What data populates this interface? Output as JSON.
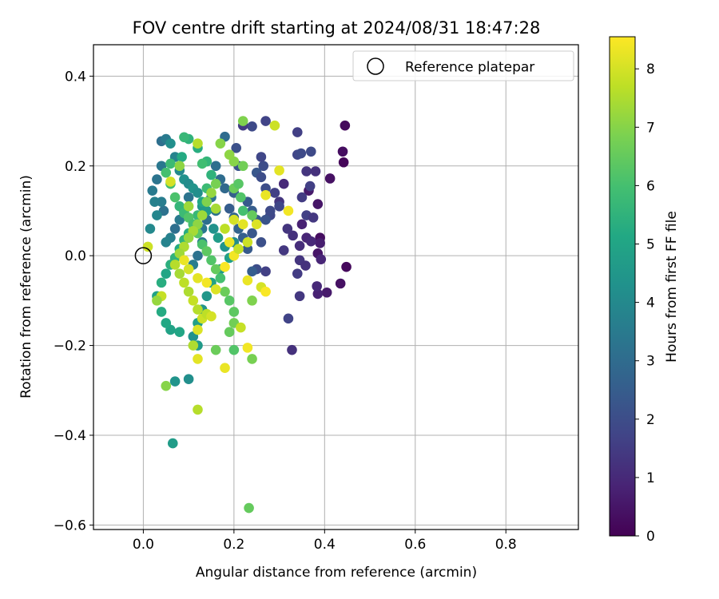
{
  "chart_data": {
    "type": "scatter",
    "title": "FOV centre drift starting at 2024/08/31 18:47:28",
    "xlabel": "Angular distance from reference (arcmin)",
    "ylabel": "Rotation from reference (arcmin)",
    "xlim": [
      -0.11,
      0.96
    ],
    "ylim": [
      -0.61,
      0.47
    ],
    "x_ticks": [
      0.0,
      0.2,
      0.4,
      0.6,
      0.8
    ],
    "x_tick_labels": [
      "0.0",
      "0.2",
      "0.4",
      "0.6",
      "0.8"
    ],
    "y_ticks": [
      0.4,
      0.2,
      0.0,
      -0.2,
      -0.4,
      -0.6
    ],
    "y_tick_labels": [
      "0.4",
      "0.2",
      "0.0",
      "−0.2",
      "−0.4",
      "−0.6"
    ],
    "grid": true,
    "legend": {
      "placement": "top-right",
      "entries": [
        "Reference platepar"
      ]
    },
    "reference_point": {
      "x": 0.0,
      "y": 0.0
    },
    "colorbar": {
      "label": "Hours from first FF file",
      "colormap": "viridis",
      "range": [
        0,
        8.55
      ],
      "ticks": [
        0,
        1,
        2,
        3,
        4,
        5,
        6,
        7,
        8
      ],
      "tick_labels": [
        "0",
        "1",
        "2",
        "3",
        "4",
        "5",
        "6",
        "7",
        "8"
      ]
    },
    "series": [
      {
        "points": [
          [
            0.445,
            0.29,
            0.2
          ],
          [
            0.44,
            0.232,
            0.3
          ],
          [
            0.442,
            0.208,
            0.1
          ],
          [
            0.412,
            0.172,
            0.4
          ],
          [
            0.385,
            0.115,
            0.5
          ],
          [
            0.365,
            0.145,
            0.6
          ],
          [
            0.39,
            0.04,
            0.3
          ],
          [
            0.39,
            0.028,
            0.7
          ],
          [
            0.385,
            0.005,
            0.5
          ],
          [
            0.392,
            -0.008,
            0.9
          ],
          [
            0.448,
            -0.025,
            0.2
          ],
          [
            0.435,
            -0.062,
            0.4
          ],
          [
            0.405,
            -0.082,
            0.6
          ],
          [
            0.385,
            -0.085,
            0.8
          ],
          [
            0.383,
            -0.068,
            1.0
          ],
          [
            0.35,
            0.07,
            0.8
          ],
          [
            0.36,
            0.04,
            0.9
          ],
          [
            0.345,
            0.022,
            1.1
          ],
          [
            0.37,
            0.032,
            1.0
          ],
          [
            0.33,
            0.045,
            1.2
          ],
          [
            0.318,
            0.06,
            1.3
          ],
          [
            0.31,
            0.012,
            1.4
          ],
          [
            0.345,
            -0.01,
            1.3
          ],
          [
            0.358,
            -0.022,
            1.2
          ],
          [
            0.34,
            -0.04,
            1.5
          ],
          [
            0.345,
            -0.09,
            1.4
          ],
          [
            0.32,
            -0.14,
            1.7
          ],
          [
            0.328,
            -0.21,
            1.2
          ],
          [
            0.34,
            0.275,
            1.6
          ],
          [
            0.34,
            0.225,
            1.8
          ],
          [
            0.348,
            0.228,
            1.9
          ],
          [
            0.37,
            0.232,
            1.9
          ],
          [
            0.36,
            0.188,
            1.3
          ],
          [
            0.38,
            0.188,
            1.2
          ],
          [
            0.368,
            0.155,
            1.6
          ],
          [
            0.35,
            0.13,
            1.5
          ],
          [
            0.36,
            0.09,
            1.6
          ],
          [
            0.375,
            0.085,
            1.4
          ],
          [
            0.31,
            0.16,
            1.0
          ],
          [
            0.3,
            0.12,
            1.3
          ],
          [
            0.29,
            0.14,
            1.6
          ],
          [
            0.28,
            0.09,
            1.8
          ],
          [
            0.27,
            0.15,
            2.0
          ],
          [
            0.265,
            0.2,
            2.0
          ],
          [
            0.26,
            0.22,
            1.8
          ],
          [
            0.27,
            0.3,
            1.7
          ],
          [
            0.24,
            0.288,
            1.9
          ],
          [
            0.22,
            0.29,
            1.5
          ],
          [
            0.205,
            0.24,
            2.1
          ],
          [
            0.21,
            0.2,
            2.2
          ],
          [
            0.25,
            0.185,
            2.3
          ],
          [
            0.26,
            0.175,
            2.0
          ],
          [
            0.28,
            0.1,
            1.9
          ],
          [
            0.3,
            0.11,
            1.8
          ],
          [
            0.27,
            0.08,
            2.2
          ],
          [
            0.25,
            0.08,
            2.4
          ],
          [
            0.24,
            0.1,
            2.5
          ],
          [
            0.23,
            0.12,
            2.4
          ],
          [
            0.24,
            0.05,
            2.3
          ],
          [
            0.26,
            0.03,
            2.1
          ],
          [
            0.27,
            -0.035,
            1.6
          ],
          [
            0.25,
            -0.03,
            2.0
          ],
          [
            0.24,
            -0.035,
            2.5
          ],
          [
            0.23,
            0.015,
            2.4
          ],
          [
            0.22,
            0.04,
            2.6
          ],
          [
            0.21,
            0.06,
            2.7
          ],
          [
            0.2,
            0.085,
            2.8
          ],
          [
            0.19,
            0.105,
            2.5
          ],
          [
            0.2,
            0.14,
            2.6
          ],
          [
            0.18,
            0.15,
            2.9
          ],
          [
            0.17,
            0.17,
            3.0
          ],
          [
            0.16,
            0.2,
            3.1
          ],
          [
            0.18,
            0.265,
            3.0
          ],
          [
            0.16,
            0.1,
            3.2
          ],
          [
            0.15,
            0.13,
            3.3
          ],
          [
            0.14,
            0.08,
            3.1
          ],
          [
            0.13,
            0.06,
            3.4
          ],
          [
            0.13,
            0.03,
            3.5
          ],
          [
            0.12,
            0.0,
            3.2
          ],
          [
            0.11,
            -0.02,
            3.6
          ],
          [
            0.1,
            0.13,
            3.3
          ],
          [
            0.09,
            0.1,
            3.4
          ],
          [
            0.08,
            0.08,
            3.5
          ],
          [
            0.07,
            0.06,
            3.1
          ],
          [
            0.06,
            0.04,
            3.7
          ],
          [
            0.05,
            0.03,
            3.8
          ],
          [
            0.045,
            0.1,
            3.2
          ],
          [
            0.04,
            0.12,
            3.6
          ],
          [
            0.03,
            0.09,
            3.9
          ],
          [
            0.025,
            0.12,
            3.7
          ],
          [
            0.02,
            0.145,
            3.5
          ],
          [
            0.015,
            0.06,
            4.0
          ],
          [
            0.03,
            0.17,
            3.3
          ],
          [
            0.04,
            0.2,
            3.4
          ],
          [
            0.04,
            0.255,
            3.1
          ],
          [
            0.05,
            0.26,
            3.5
          ],
          [
            0.06,
            0.25,
            4.2
          ],
          [
            0.07,
            0.22,
            3.8
          ],
          [
            0.08,
            0.19,
            4.0
          ],
          [
            0.09,
            0.17,
            4.3
          ],
          [
            0.1,
            0.16,
            4.1
          ],
          [
            0.11,
            0.15,
            4.4
          ],
          [
            0.12,
            0.14,
            4.2
          ],
          [
            0.13,
            0.11,
            4.5
          ],
          [
            0.14,
            0.1,
            4.6
          ],
          [
            0.155,
            0.06,
            4.3
          ],
          [
            0.165,
            0.04,
            4.7
          ],
          [
            0.18,
            0.02,
            4.4
          ],
          [
            0.2,
            0.03,
            4.1
          ],
          [
            0.19,
            -0.005,
            4.8
          ],
          [
            0.17,
            -0.03,
            4.6
          ],
          [
            0.15,
            -0.06,
            4.9
          ],
          [
            0.14,
            -0.09,
            4.5
          ],
          [
            0.13,
            -0.12,
            4.4
          ],
          [
            0.12,
            -0.15,
            4.8
          ],
          [
            0.11,
            -0.18,
            4.3
          ],
          [
            0.1,
            -0.275,
            4.2
          ],
          [
            0.07,
            -0.28,
            4.4
          ],
          [
            0.065,
            -0.418,
            4.7
          ],
          [
            0.12,
            -0.2,
            4.6
          ],
          [
            0.08,
            -0.17,
            5.0
          ],
          [
            0.06,
            -0.165,
            4.9
          ],
          [
            0.05,
            -0.15,
            5.1
          ],
          [
            0.04,
            -0.125,
            5.2
          ],
          [
            0.03,
            -0.09,
            4.9
          ],
          [
            0.04,
            -0.06,
            5.3
          ],
          [
            0.05,
            -0.04,
            5.0
          ],
          [
            0.06,
            -0.02,
            5.4
          ],
          [
            0.07,
            -0.005,
            5.5
          ],
          [
            0.08,
            0.015,
            5.2
          ],
          [
            0.09,
            0.035,
            5.6
          ],
          [
            0.1,
            0.05,
            5.3
          ],
          [
            0.11,
            0.07,
            5.4
          ],
          [
            0.12,
            0.09,
            5.7
          ],
          [
            0.13,
            0.12,
            5.1
          ],
          [
            0.14,
            0.15,
            5.8
          ],
          [
            0.15,
            0.18,
            5.5
          ],
          [
            0.14,
            0.21,
            5.6
          ],
          [
            0.13,
            0.205,
            5.9
          ],
          [
            0.12,
            0.24,
            5.3
          ],
          [
            0.1,
            0.26,
            5.5
          ],
          [
            0.09,
            0.264,
            5.7
          ],
          [
            0.085,
            0.22,
            5.2
          ],
          [
            0.06,
            0.205,
            5.8
          ],
          [
            0.05,
            0.185,
            6.0
          ],
          [
            0.06,
            0.16,
            5.9
          ],
          [
            0.07,
            0.13,
            6.1
          ],
          [
            0.08,
            0.11,
            5.6
          ],
          [
            0.09,
            0.095,
            5.8
          ],
          [
            0.1,
            0.085,
            6.2
          ],
          [
            0.11,
            0.07,
            6.0
          ],
          [
            0.12,
            0.05,
            6.3
          ],
          [
            0.13,
            0.025,
            6.1
          ],
          [
            0.14,
            0.01,
            6.4
          ],
          [
            0.15,
            -0.01,
            6.2
          ],
          [
            0.16,
            -0.03,
            6.5
          ],
          [
            0.17,
            -0.05,
            6.0
          ],
          [
            0.18,
            -0.08,
            6.6
          ],
          [
            0.19,
            -0.1,
            6.3
          ],
          [
            0.2,
            -0.125,
            6.4
          ],
          [
            0.2,
            -0.15,
            6.7
          ],
          [
            0.19,
            -0.17,
            6.5
          ],
          [
            0.16,
            -0.21,
            6.6
          ],
          [
            0.2,
            -0.21,
            6.2
          ],
          [
            0.24,
            -0.23,
            6.8
          ],
          [
            0.233,
            -0.562,
            6.5
          ],
          [
            0.24,
            -0.1,
            6.9
          ],
          [
            0.22,
            0.1,
            6.0
          ],
          [
            0.24,
            0.09,
            6.5
          ],
          [
            0.215,
            0.13,
            6.2
          ],
          [
            0.2,
            0.15,
            6.6
          ],
          [
            0.21,
            0.16,
            6.3
          ],
          [
            0.22,
            0.2,
            6.7
          ],
          [
            0.22,
            0.3,
            6.9
          ],
          [
            0.2,
            0.21,
            7.0
          ],
          [
            0.19,
            0.225,
            7.1
          ],
          [
            0.17,
            0.25,
            7.0
          ],
          [
            0.16,
            0.16,
            6.8
          ],
          [
            0.15,
            0.14,
            7.2
          ],
          [
            0.14,
            0.12,
            6.9
          ],
          [
            0.13,
            0.09,
            7.3
          ],
          [
            0.12,
            0.07,
            7.1
          ],
          [
            0.11,
            0.055,
            7.4
          ],
          [
            0.1,
            0.04,
            7.2
          ],
          [
            0.09,
            0.02,
            7.5
          ],
          [
            0.08,
            0.005,
            7.3
          ],
          [
            0.07,
            -0.02,
            7.6
          ],
          [
            0.08,
            -0.04,
            7.4
          ],
          [
            0.09,
            -0.06,
            7.7
          ],
          [
            0.1,
            -0.08,
            7.5
          ],
          [
            0.11,
            -0.1,
            7.8
          ],
          [
            0.12,
            -0.12,
            7.6
          ],
          [
            0.13,
            -0.14,
            7.9
          ],
          [
            0.14,
            -0.13,
            7.7
          ],
          [
            0.15,
            -0.135,
            8.0
          ],
          [
            0.12,
            -0.165,
            8.1
          ],
          [
            0.11,
            -0.2,
            7.5
          ],
          [
            0.12,
            -0.23,
            8.2
          ],
          [
            0.12,
            -0.343,
            7.6
          ],
          [
            0.05,
            -0.29,
            7.0
          ],
          [
            0.04,
            -0.09,
            7.8
          ],
          [
            0.03,
            -0.1,
            7.2
          ],
          [
            0.01,
            0.02,
            7.9
          ],
          [
            0.06,
            0.165,
            8.0
          ],
          [
            0.08,
            0.2,
            7.1
          ],
          [
            0.1,
            0.11,
            7.3
          ],
          [
            0.12,
            0.25,
            7.6
          ],
          [
            0.16,
            0.105,
            7.4
          ],
          [
            0.18,
            0.06,
            7.7
          ],
          [
            0.2,
            0.08,
            8.0
          ],
          [
            0.22,
            0.07,
            8.2
          ],
          [
            0.23,
            0.03,
            7.9
          ],
          [
            0.19,
            0.03,
            8.3
          ],
          [
            0.2,
            0.0,
            8.4
          ],
          [
            0.21,
            0.015,
            7.8
          ],
          [
            0.18,
            -0.025,
            8.5
          ],
          [
            0.16,
            -0.075,
            8.1
          ],
          [
            0.14,
            -0.06,
            8.4
          ],
          [
            0.12,
            -0.05,
            8.2
          ],
          [
            0.1,
            -0.03,
            8.0
          ],
          [
            0.09,
            -0.01,
            8.3
          ],
          [
            0.25,
            0.07,
            8.1
          ],
          [
            0.27,
            0.135,
            8.3
          ],
          [
            0.29,
            0.29,
            7.9
          ],
          [
            0.3,
            0.19,
            8.2
          ],
          [
            0.32,
            0.1,
            8.4
          ],
          [
            0.26,
            -0.07,
            8.0
          ],
          [
            0.27,
            -0.08,
            8.5
          ],
          [
            0.23,
            -0.055,
            8.3
          ],
          [
            0.23,
            -0.205,
            8.4
          ],
          [
            0.18,
            -0.25,
            8.3
          ],
          [
            0.215,
            -0.16,
            7.8
          ]
        ]
      }
    ]
  }
}
